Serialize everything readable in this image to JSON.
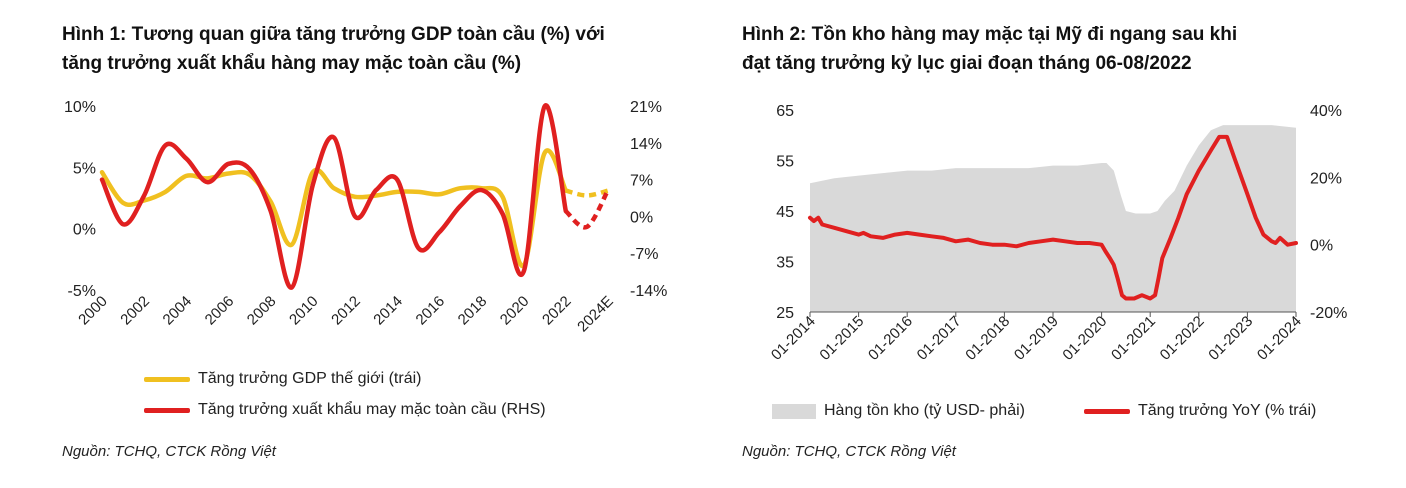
{
  "chart_data": [
    {
      "type": "line",
      "title": "Hình 1: Tương quan giữa tăng trưởng GDP toàn cầu (%) với\ntăng trưởng xuất khẩu hàng may mặc toàn cầu (%)",
      "x": [
        2000,
        2001,
        2002,
        2003,
        2004,
        2005,
        2006,
        2007,
        2008,
        2009,
        2010,
        2011,
        2012,
        2013,
        2014,
        2015,
        2016,
        2017,
        2018,
        2019,
        2020,
        2021,
        2022,
        2023,
        2024
      ],
      "xtick_labels": [
        "2000",
        "2002",
        "2004",
        "2006",
        "2008",
        "2010",
        "2012",
        "2014",
        "2016",
        "2018",
        "2020",
        "2022",
        "2024E"
      ],
      "ylim_left": [
        -5,
        10
      ],
      "yticks_left": [
        "-5%",
        "0%",
        "5%",
        "10%"
      ],
      "ylim_right": [
        -14,
        21
      ],
      "yticks_right": [
        "-14%",
        "-7%",
        "0%",
        "7%",
        "14%",
        "21%"
      ],
      "series": [
        {
          "name": "Tăng trưởng GDP thế giới (trái)",
          "axis": "left",
          "color": "#f0c020",
          "values": [
            4.6,
            2.1,
            2.3,
            3.0,
            4.3,
            4.1,
            4.5,
            4.4,
            2.2,
            -1.3,
            4.6,
            3.3,
            2.6,
            2.7,
            3.0,
            3.0,
            2.8,
            3.3,
            3.3,
            2.6,
            -3.0,
            6.2,
            3.1,
            2.7,
            3.1
          ],
          "projected_from_index": 22
        },
        {
          "name": "Tăng trưởng xuất khẩu may mặc toàn cầu (RHS)",
          "axis": "right",
          "color": "#e02020",
          "values": [
            7.0,
            -1.5,
            4.0,
            13.5,
            11.0,
            6.5,
            10.0,
            9.0,
            1.0,
            -13.5,
            6.0,
            15.0,
            0.0,
            5.0,
            7.0,
            -6.0,
            -3.0,
            2.0,
            5.0,
            0.5,
            -10.5,
            21.0,
            1.0,
            -2.0,
            5.0
          ],
          "projected_from_index": 22
        }
      ]
    },
    {
      "type": "area+line",
      "title": "Hình 2: Tồn kho hàng may mặc tại Mỹ đi ngang sau khi\nđạt tăng trưởng kỷ lục giai đoạn tháng 06-08/2022",
      "xtick_labels": [
        "01-2014",
        "01-2015",
        "01-2016",
        "01-2017",
        "01-2018",
        "01-2019",
        "01-2020",
        "01-2021",
        "01-2022",
        "01-2023",
        "01-2024"
      ],
      "x_range_years": [
        2014.0,
        2024.0
      ],
      "ylim_left": [
        25,
        65
      ],
      "yticks_left": [
        "25",
        "35",
        "45",
        "55",
        "65"
      ],
      "ylim_right": [
        -20,
        40
      ],
      "yticks_right": [
        "-20%",
        "0%",
        "20%",
        "40%"
      ],
      "series": [
        {
          "name": "Hàng tồn kho (tỷ USD- phải)",
          "kind": "area",
          "axis": "left",
          "color": "#d9d9d9",
          "points": [
            [
              2014.0,
              50.5
            ],
            [
              2014.5,
              51.5
            ],
            [
              2015.0,
              52.0
            ],
            [
              2015.5,
              52.5
            ],
            [
              2016.0,
              53.0
            ],
            [
              2016.5,
              53.0
            ],
            [
              2017.0,
              53.5
            ],
            [
              2017.5,
              53.5
            ],
            [
              2018.0,
              53.5
            ],
            [
              2018.5,
              53.5
            ],
            [
              2019.0,
              54.0
            ],
            [
              2019.5,
              54.0
            ],
            [
              2020.0,
              54.5
            ],
            [
              2020.1,
              54.5
            ],
            [
              2020.25,
              53.0
            ],
            [
              2020.4,
              48.0
            ],
            [
              2020.5,
              45.0
            ],
            [
              2020.7,
              44.5
            ],
            [
              2021.0,
              44.5
            ],
            [
              2021.15,
              45.0
            ],
            [
              2021.3,
              47.0
            ],
            [
              2021.5,
              49.0
            ],
            [
              2021.75,
              54.0
            ],
            [
              2022.0,
              58.0
            ],
            [
              2022.25,
              61.0
            ],
            [
              2022.5,
              62.0
            ],
            [
              2022.75,
              62.0
            ],
            [
              2023.0,
              62.0
            ],
            [
              2023.5,
              62.0
            ],
            [
              2024.0,
              61.5
            ]
          ]
        },
        {
          "name": "Tăng trưởng YoY (% trái)",
          "kind": "line",
          "axis": "right",
          "color": "#e02020",
          "points": [
            [
              2014.0,
              8
            ],
            [
              2014.08,
              7
            ],
            [
              2014.17,
              8
            ],
            [
              2014.25,
              6
            ],
            [
              2014.5,
              5
            ],
            [
              2014.75,
              4
            ],
            [
              2015.0,
              3
            ],
            [
              2015.1,
              3.5
            ],
            [
              2015.25,
              2.5
            ],
            [
              2015.5,
              2
            ],
            [
              2015.75,
              3
            ],
            [
              2016.0,
              3.5
            ],
            [
              2016.25,
              3
            ],
            [
              2016.5,
              2.5
            ],
            [
              2016.75,
              2
            ],
            [
              2017.0,
              1
            ],
            [
              2017.25,
              1.5
            ],
            [
              2017.5,
              0.5
            ],
            [
              2017.75,
              0
            ],
            [
              2018.0,
              0
            ],
            [
              2018.25,
              -0.5
            ],
            [
              2018.5,
              0.5
            ],
            [
              2018.75,
              1
            ],
            [
              2019.0,
              1.5
            ],
            [
              2019.25,
              1
            ],
            [
              2019.5,
              0.5
            ],
            [
              2019.75,
              0.5
            ],
            [
              2020.0,
              0
            ],
            [
              2020.08,
              -2
            ],
            [
              2020.17,
              -4
            ],
            [
              2020.25,
              -6
            ],
            [
              2020.33,
              -10
            ],
            [
              2020.42,
              -15
            ],
            [
              2020.5,
              -16
            ],
            [
              2020.67,
              -16
            ],
            [
              2020.83,
              -15
            ],
            [
              2021.0,
              -16
            ],
            [
              2021.1,
              -15
            ],
            [
              2021.17,
              -10
            ],
            [
              2021.25,
              -4
            ],
            [
              2021.42,
              2
            ],
            [
              2021.58,
              8
            ],
            [
              2021.75,
              15
            ],
            [
              2022.0,
              22
            ],
            [
              2022.25,
              28
            ],
            [
              2022.42,
              32
            ],
            [
              2022.58,
              32
            ],
            [
              2022.75,
              25
            ],
            [
              2023.0,
              15
            ],
            [
              2023.17,
              8
            ],
            [
              2023.33,
              3
            ],
            [
              2023.5,
              1
            ],
            [
              2023.58,
              0.5
            ],
            [
              2023.67,
              2
            ],
            [
              2023.75,
              1
            ],
            [
              2023.83,
              0
            ],
            [
              2024.0,
              0.5
            ]
          ]
        }
      ]
    }
  ],
  "legend1": {
    "gdp": "Tăng trưởng GDP thế giới (trái)",
    "exports": "Tăng trưởng xuất khẩu may mặc toàn cầu (RHS)"
  },
  "legend2": {
    "inventory": "Hàng tồn kho (tỷ USD- phải)",
    "yoy": "Tăng trưởng YoY (% trái)"
  },
  "sources": {
    "fig1": "Nguồn: TCHQ, CTCK Rồng Việt",
    "fig2": "Nguồn: TCHQ, CTCK Rồng Việt"
  },
  "colors": {
    "yellow": "#f0c020",
    "red": "#e02020",
    "grey_area": "#d9d9d9"
  }
}
